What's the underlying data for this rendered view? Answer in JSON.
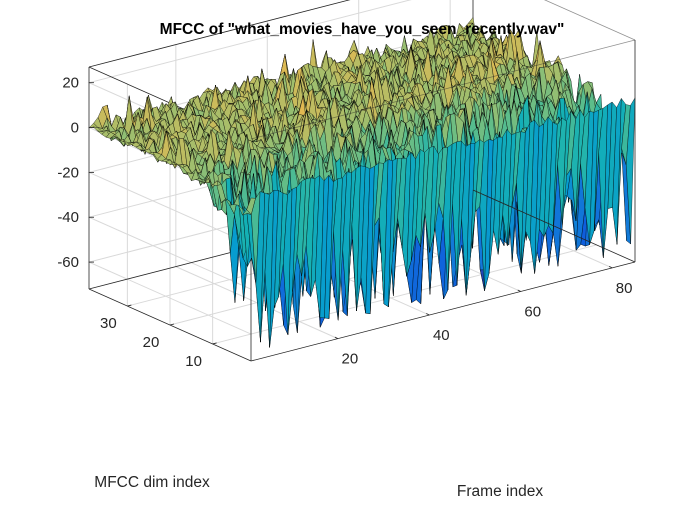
{
  "chart_data": {
    "type": "surface",
    "title": "MFCC of \"what_movies_have_you_seen_recently.wav\"",
    "xlabel": "Frame index",
    "ylabel": "MFCC dim index",
    "zlabel": "",
    "xlim": [
      1,
      85
    ],
    "ylim": [
      1,
      39
    ],
    "zlim": [
      -72,
      27
    ],
    "xticks": [
      20,
      40,
      60,
      80
    ],
    "yticks": [
      10,
      20,
      30
    ],
    "zticks": [
      20,
      0,
      -20,
      -40,
      -60
    ],
    "grid": true,
    "box": true,
    "colormap": "parula",
    "edge_color": "#000000",
    "frames": 85,
    "dims": 39,
    "summary": {
      "low_dims_range": [
        -70,
        -30
      ],
      "mid_high_dims_range": [
        -8,
        12
      ],
      "dim1_level": 0,
      "peak_z": 15,
      "min_z": -70
    }
  }
}
